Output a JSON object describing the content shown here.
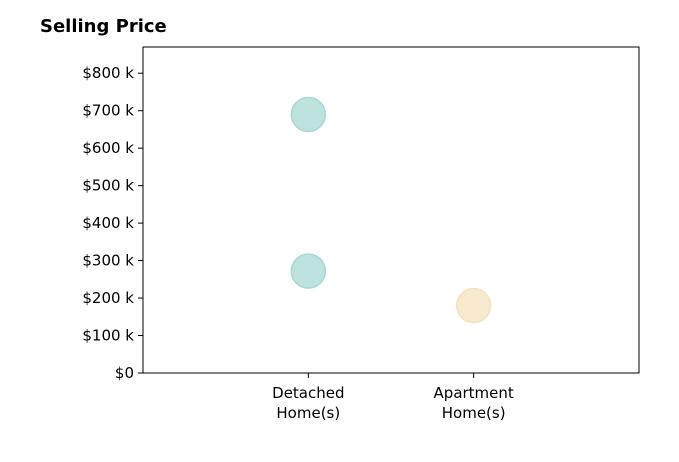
{
  "chart_data": {
    "type": "scatter",
    "title": "Selling Price",
    "xlabel": "",
    "ylabel": "",
    "categories": [
      [
        "Detached",
        "Home(s)"
      ],
      [
        "Apartment",
        "Home(s)"
      ]
    ],
    "points": [
      {
        "category_index": 0,
        "value": 690,
        "color": "#a8d8d3"
      },
      {
        "category_index": 0,
        "value": 272,
        "color": "#a8d8d3"
      },
      {
        "category_index": 1,
        "value": 180,
        "color": "#f6e3bd"
      }
    ],
    "x_positions": [
      1,
      2
    ],
    "xlim": [
      0,
      3
    ],
    "ylim": [
      0,
      870
    ],
    "y_ticks": [
      0,
      100,
      200,
      300,
      400,
      500,
      600,
      700,
      800
    ],
    "y_tick_labels": [
      "$0",
      "$100 k",
      "$200 k",
      "$300 k",
      "$400 k",
      "$500 k",
      "$600 k",
      "$700 k",
      "$800 k"
    ],
    "grid": false,
    "legend": "none",
    "colors": {
      "detached": "#a8d8d3",
      "apartment": "#f6e3bd"
    }
  }
}
